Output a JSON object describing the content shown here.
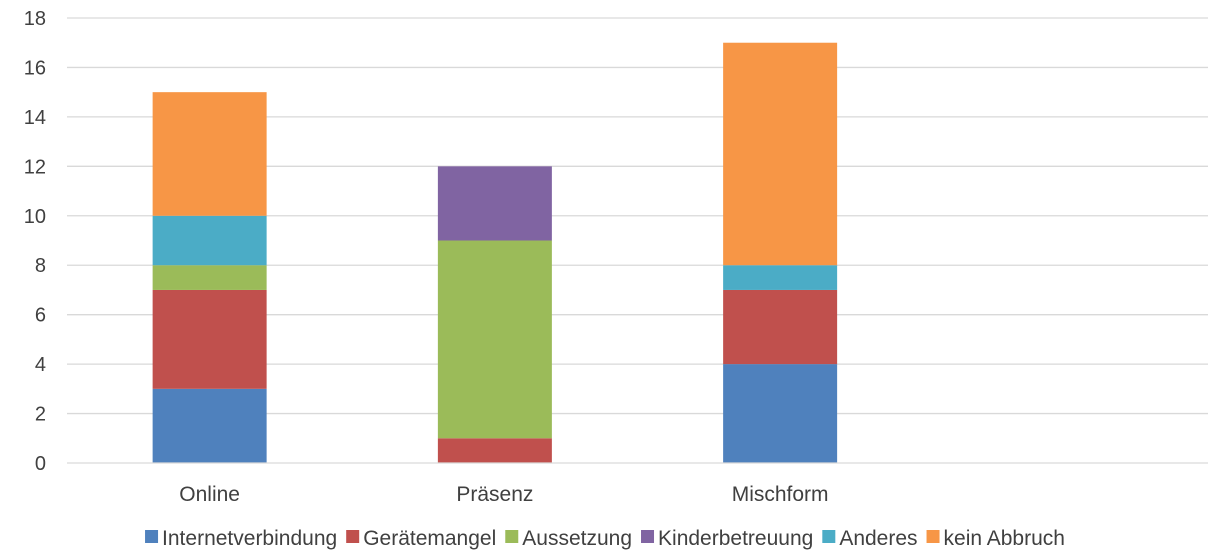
{
  "chart_data": {
    "type": "bar",
    "stacked": true,
    "categories": [
      "Online",
      "Präsenz",
      "Mischform"
    ],
    "series": [
      {
        "name": "Internetverbindung",
        "color": "#4f81bd",
        "values": [
          3,
          0,
          4
        ]
      },
      {
        "name": "Gerätemangel",
        "color": "#c0504d",
        "values": [
          4,
          1,
          3
        ]
      },
      {
        "name": "Aussetzung",
        "color": "#9bbb59",
        "values": [
          1,
          8,
          0
        ]
      },
      {
        "name": "Kinderbetreuung",
        "color": "#8064a2",
        "values": [
          0,
          3,
          0
        ]
      },
      {
        "name": "Anderes",
        "color": "#4bacc6",
        "values": [
          2,
          0,
          1
        ]
      },
      {
        "name": "kein Abbruch",
        "color": "#f79646",
        "values": [
          5,
          0,
          9
        ]
      }
    ],
    "yticks": [
      0,
      2,
      4,
      6,
      8,
      10,
      12,
      14,
      16,
      18
    ],
    "ylim": [
      0,
      18
    ],
    "grid": true,
    "legend_position": "bottom",
    "title": "",
    "xlabel": "",
    "ylabel": ""
  }
}
